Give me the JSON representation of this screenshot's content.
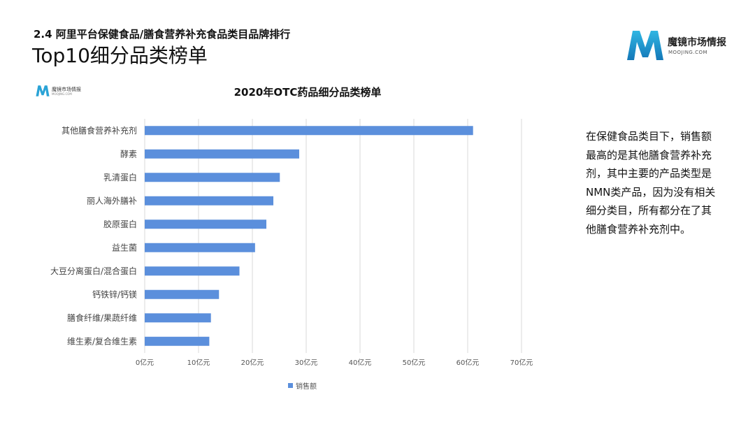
{
  "header": {
    "section_title": "2.4 阿里平台保健食品/膳食营养补充食品类目品牌排行",
    "page_title": "Top10细分品类榜单"
  },
  "brand": {
    "name": "魔镜市场情报",
    "url": "MOOJING.COM",
    "logo_color": "#2aa3d6"
  },
  "side_text": "在保健食品类目下，销售额最高的是其他膳食营养补充剂，其中主要的产品类型是NMN类产品，因为没有相关细分类目，所有都分在了其他膳食营养补充剂中。",
  "chart_data": {
    "type": "bar",
    "orientation": "horizontal",
    "title": "2020年OTC药品细分品类榜单",
    "categories": [
      "其他膳食营养补充剂",
      "酵素",
      "乳清蛋白",
      "丽人海外膳补",
      "胶原蛋白",
      "益生菌",
      "大豆分离蛋白/混合蛋白",
      "钙铁锌/钙镁",
      "膳食纤维/果蔬纤维",
      "维生素/复合维生素"
    ],
    "series": [
      {
        "name": "销售额",
        "values": [
          61,
          28.7,
          25.1,
          23.9,
          22.6,
          20.5,
          17.6,
          13.8,
          12.3,
          12.0
        ],
        "color": "#5b8fdc"
      }
    ],
    "x_ticks": [
      "0亿元",
      "10亿元",
      "20亿元",
      "30亿元",
      "40亿元",
      "50亿元",
      "60亿元",
      "70亿元"
    ],
    "xlim": [
      0,
      70
    ],
    "grid": true,
    "legend_position": "bottom"
  }
}
